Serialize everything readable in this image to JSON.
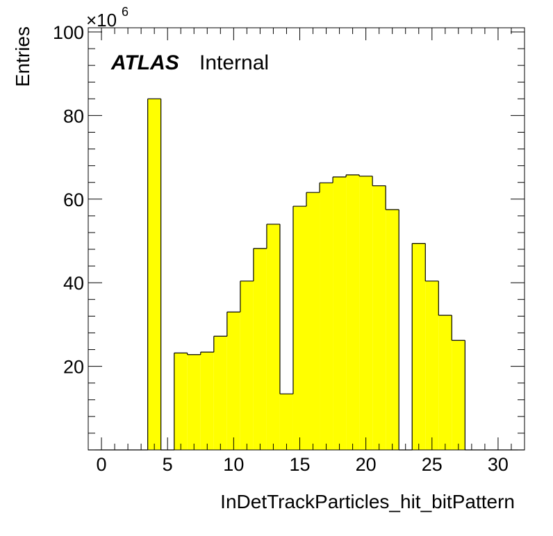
{
  "chart_data": {
    "type": "bar",
    "xlabel": "InDetTrackParticles_hit_bitPattern",
    "ylabel": "Entries",
    "y_multiplier": "×10",
    "y_multiplier_exponent": "6",
    "xlim": [
      -1,
      32
    ],
    "ylim": [
      0,
      101
    ],
    "x_ticks": [
      0,
      5,
      10,
      15,
      20,
      25,
      30
    ],
    "y_ticks": [
      20,
      40,
      60,
      80,
      100
    ],
    "bin_width": 1,
    "bins": [
      {
        "x": 4,
        "value": 84.0
      },
      {
        "x": 6,
        "value": 23.2
      },
      {
        "x": 7,
        "value": 22.8
      },
      {
        "x": 8,
        "value": 23.4
      },
      {
        "x": 9,
        "value": 27.2
      },
      {
        "x": 10,
        "value": 33.0
      },
      {
        "x": 11,
        "value": 40.4
      },
      {
        "x": 12,
        "value": 48.2
      },
      {
        "x": 13,
        "value": 54.0
      },
      {
        "x": 14,
        "value": 13.4
      },
      {
        "x": 15,
        "value": 58.3
      },
      {
        "x": 16,
        "value": 61.6
      },
      {
        "x": 17,
        "value": 63.9
      },
      {
        "x": 18,
        "value": 65.3
      },
      {
        "x": 19,
        "value": 65.8
      },
      {
        "x": 20,
        "value": 65.5
      },
      {
        "x": 21,
        "value": 63.2
      },
      {
        "x": 22,
        "value": 57.5
      },
      {
        "x": 24,
        "value": 49.4
      },
      {
        "x": 25,
        "value": 40.4
      },
      {
        "x": 26,
        "value": 32.2
      },
      {
        "x": 27,
        "value": 26.2
      }
    ],
    "fill_color": "#ffff00",
    "line_color": "#000000",
    "grid": false,
    "annotation": {
      "experiment": "ATLAS",
      "status": "Internal"
    }
  }
}
